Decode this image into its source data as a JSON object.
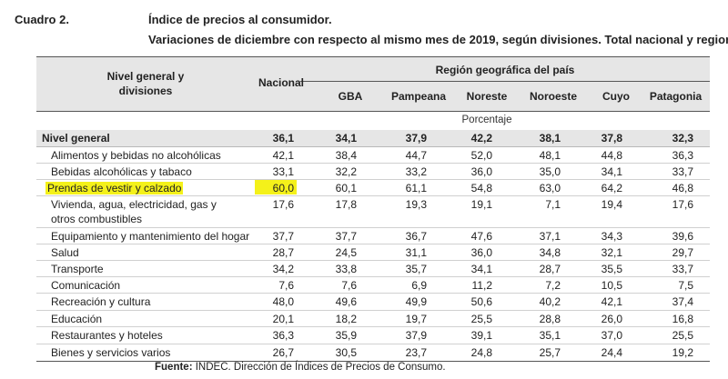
{
  "cuadro_label": "Cuadro 2.",
  "title": {
    "line1": "Índice de precios al consumidor.",
    "line2": "Variaciones de diciembre con respecto al mismo mes de 2019, según divisiones. Total nacional y regiones"
  },
  "header": {
    "col0_line1": "Nivel general y",
    "col0_line2": "divisiones",
    "nacional": "Nacional",
    "region_group": "Región geográfica del país",
    "regions": [
      "GBA",
      "Pampeana",
      "Noreste",
      "Noroeste",
      "Cuyo",
      "Patagonia"
    ]
  },
  "unit_label": "Porcentaje",
  "rows": [
    {
      "label": "Nivel general",
      "values": [
        "36,1",
        "34,1",
        "37,9",
        "42,2",
        "38,1",
        "37,8",
        "32,3"
      ]
    },
    {
      "label": "Alimentos y bebidas no alcohólicas",
      "values": [
        "42,1",
        "38,4",
        "44,7",
        "52,0",
        "48,1",
        "44,8",
        "36,3"
      ]
    },
    {
      "label": "Bebidas alcohólicas y tabaco",
      "values": [
        "33,1",
        "32,2",
        "33,2",
        "36,0",
        "35,0",
        "34,1",
        "33,7"
      ]
    },
    {
      "label": "Prendas de vestir y calzado",
      "values": [
        "60,0",
        "60,1",
        "61,1",
        "54,8",
        "63,0",
        "64,2",
        "46,8"
      ]
    },
    {
      "label": "Vivienda, agua, electricidad, gas y otros combustibles",
      "values": [
        "17,6",
        "17,8",
        "19,3",
        "19,1",
        "7,1",
        "19,4",
        "17,6"
      ]
    },
    {
      "label": "Equipamiento y mantenimiento del hogar",
      "values": [
        "37,7",
        "37,7",
        "36,7",
        "47,6",
        "37,1",
        "34,3",
        "39,6"
      ]
    },
    {
      "label": "Salud",
      "values": [
        "28,7",
        "24,5",
        "31,1",
        "36,0",
        "34,8",
        "32,1",
        "29,7"
      ]
    },
    {
      "label": "Transporte",
      "values": [
        "34,2",
        "33,8",
        "35,7",
        "34,1",
        "28,7",
        "35,5",
        "33,7"
      ]
    },
    {
      "label": "Comunicación",
      "values": [
        "7,6",
        "7,6",
        "6,9",
        "11,2",
        "7,2",
        "10,5",
        "7,5"
      ]
    },
    {
      "label": "Recreación y cultura",
      "values": [
        "48,0",
        "49,6",
        "49,9",
        "50,6",
        "40,2",
        "42,1",
        "37,4"
      ]
    },
    {
      "label": "Educación",
      "values": [
        "20,1",
        "18,2",
        "19,7",
        "25,5",
        "28,8",
        "26,0",
        "16,8"
      ]
    },
    {
      "label": "Restaurantes y hoteles",
      "values": [
        "36,3",
        "35,9",
        "37,9",
        "39,1",
        "35,1",
        "37,0",
        "25,5"
      ]
    },
    {
      "label": "Bienes y servicios varios",
      "values": [
        "26,7",
        "30,5",
        "23,7",
        "24,8",
        "25,7",
        "24,4",
        "19,2"
      ]
    }
  ],
  "source": {
    "prefix": "Fuente:",
    "text": "INDEC. Dirección de Índices de Precios de Consumo."
  },
  "colors": {
    "highlight": "#f4f11a",
    "band": "#e6e6e6"
  }
}
